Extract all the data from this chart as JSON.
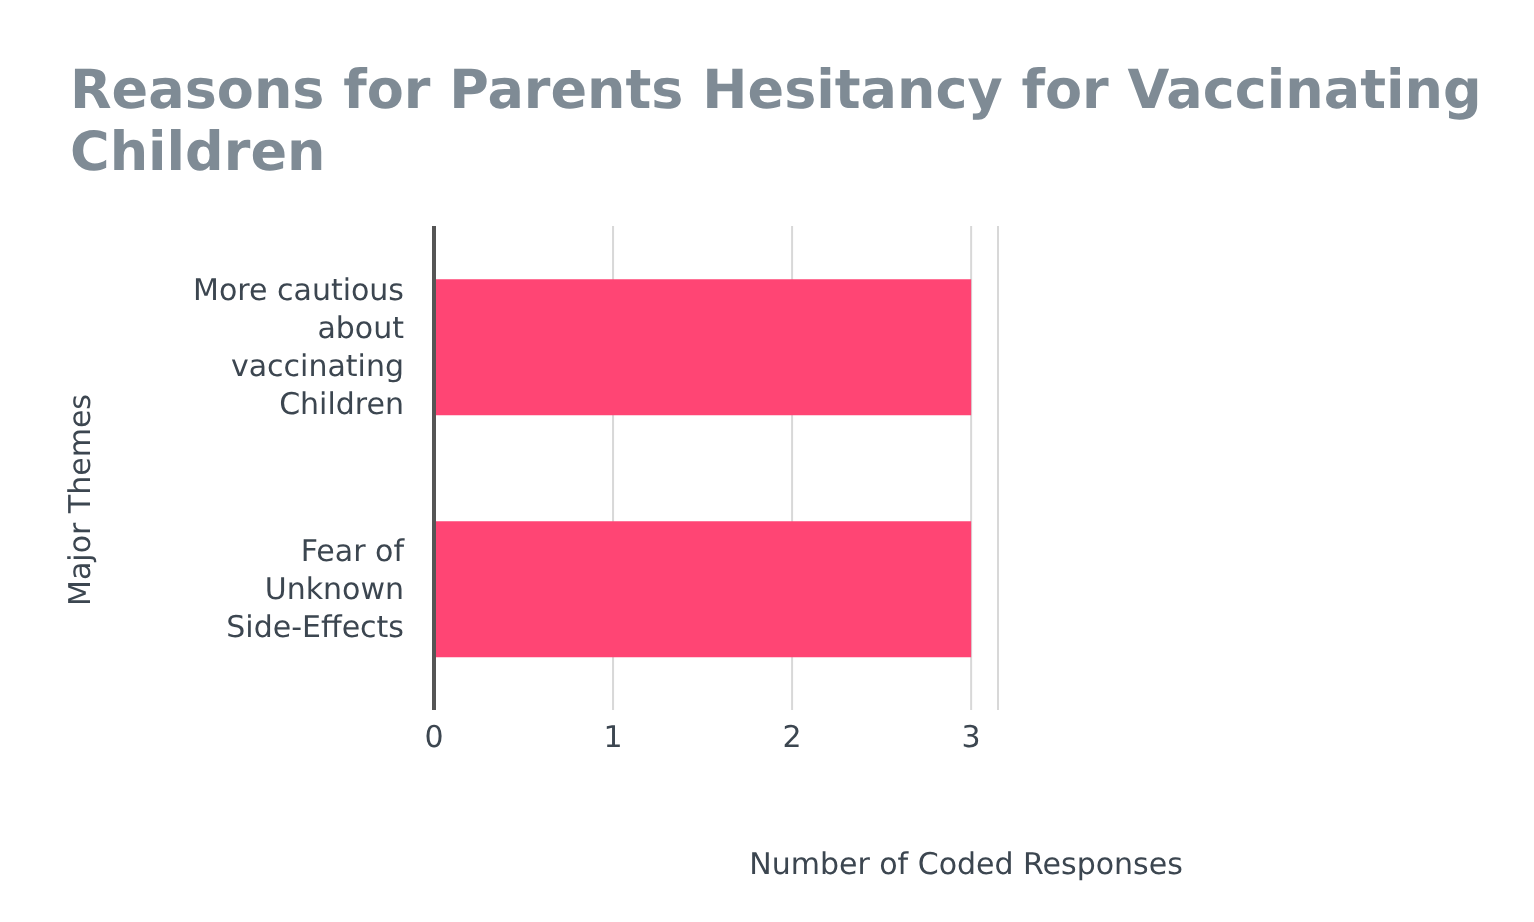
{
  "chart_data": {
    "type": "bar",
    "orientation": "horizontal",
    "title": "Reasons for Parents Hesitancy for Vaccinating Children",
    "xlabel": "Number of Coded Responses",
    "ylabel": "Major Themes",
    "categories": [
      "More cautious about vaccinating Children",
      "Fear of Unknown Side-Effects"
    ],
    "values": [
      3,
      3
    ],
    "color": "#ff4574",
    "xlim": [
      0,
      3.15
    ],
    "xticks": [
      0,
      1,
      2,
      3
    ],
    "grid": "x"
  }
}
